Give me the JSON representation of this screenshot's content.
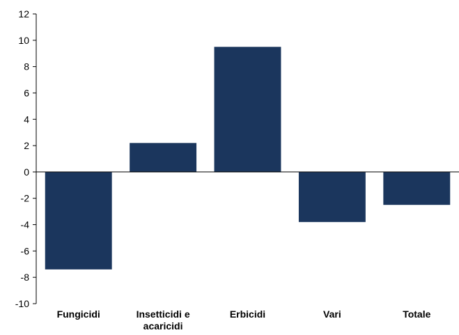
{
  "chart_data": {
    "type": "bar",
    "title": "",
    "xlabel": "",
    "ylabel": "",
    "categories": [
      [
        "Fungicidi"
      ],
      [
        "Insetticidi e",
        "acaricidi"
      ],
      [
        "Erbicidi"
      ],
      [
        "Vari"
      ],
      [
        "Totale"
      ]
    ],
    "values": [
      -7.4,
      2.2,
      9.5,
      -3.8,
      -2.5
    ],
    "ylim": [
      -10,
      12
    ],
    "yticks": [
      -10,
      -8,
      -6,
      -4,
      -2,
      0,
      2,
      4,
      6,
      8,
      10,
      12
    ],
    "grid": false,
    "legend": "none",
    "bar_color": "#1b365d"
  }
}
